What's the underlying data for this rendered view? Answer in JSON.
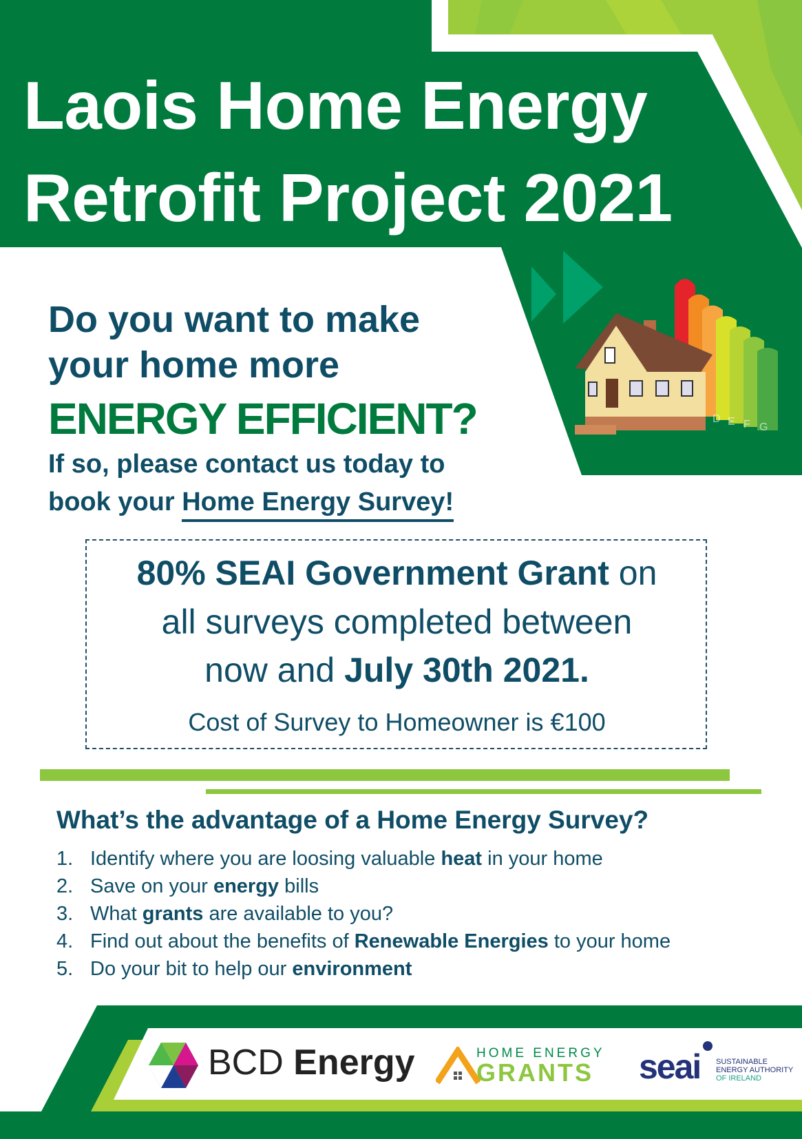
{
  "header": {
    "title_line1": "Laois Home Energy",
    "title_line2": "Retrofit Project 2021"
  },
  "question": {
    "line1": "Do you want to make",
    "line2": "your home more",
    "line3": "ENERGY EFFICIENT?",
    "line4": "If so, please contact us today to",
    "line5_prefix": "book your ",
    "line5_link": "Home Energy Survey!"
  },
  "grant_box": {
    "line1_bold": "80% SEAI Government Grant",
    "line1_rest": " on",
    "line2": "all surveys completed between",
    "line3_prefix": "now and ",
    "line3_bold": "July 30th 2021.",
    "cost": "Cost of Survey to Homeowner is €100"
  },
  "advantages": {
    "heading": "What’s the advantage of a Home Energy Survey?",
    "items": [
      {
        "num": "1.",
        "pre": "Identify where you are loosing valuable ",
        "bold": "heat",
        "post": " in your home"
      },
      {
        "num": "2.",
        "pre": "Save on your ",
        "bold": "energy",
        "post": " bills"
      },
      {
        "num": "3.",
        "pre": "What ",
        "bold": "grants",
        "post": " are available to you?"
      },
      {
        "num": "4.",
        "pre": "Find out about the benefits of ",
        "bold": "Renewable Energies",
        "post": " to your home"
      },
      {
        "num": "5.",
        "pre": "Do your bit to help our ",
        "bold": "environment",
        "post": ""
      }
    ]
  },
  "illustration": {
    "energy_labels": [
      "D",
      "E",
      "F",
      "G"
    ]
  },
  "footer": {
    "bcd": {
      "light": "BCD ",
      "dark": "Energy"
    },
    "heg": {
      "top": "HOME ENERGY",
      "bottom": "GRANTS"
    },
    "seai": {
      "word": "seai",
      "line1": "SUSTAINABLE",
      "line2": "ENERGY AUTHORITY",
      "line3": "OF IRELAND"
    }
  },
  "colors": {
    "dark_green": "#007a3d",
    "light_green": "#8dc63f",
    "navy_text": "#0f4d66",
    "arrow_teal": "#00a06b"
  }
}
